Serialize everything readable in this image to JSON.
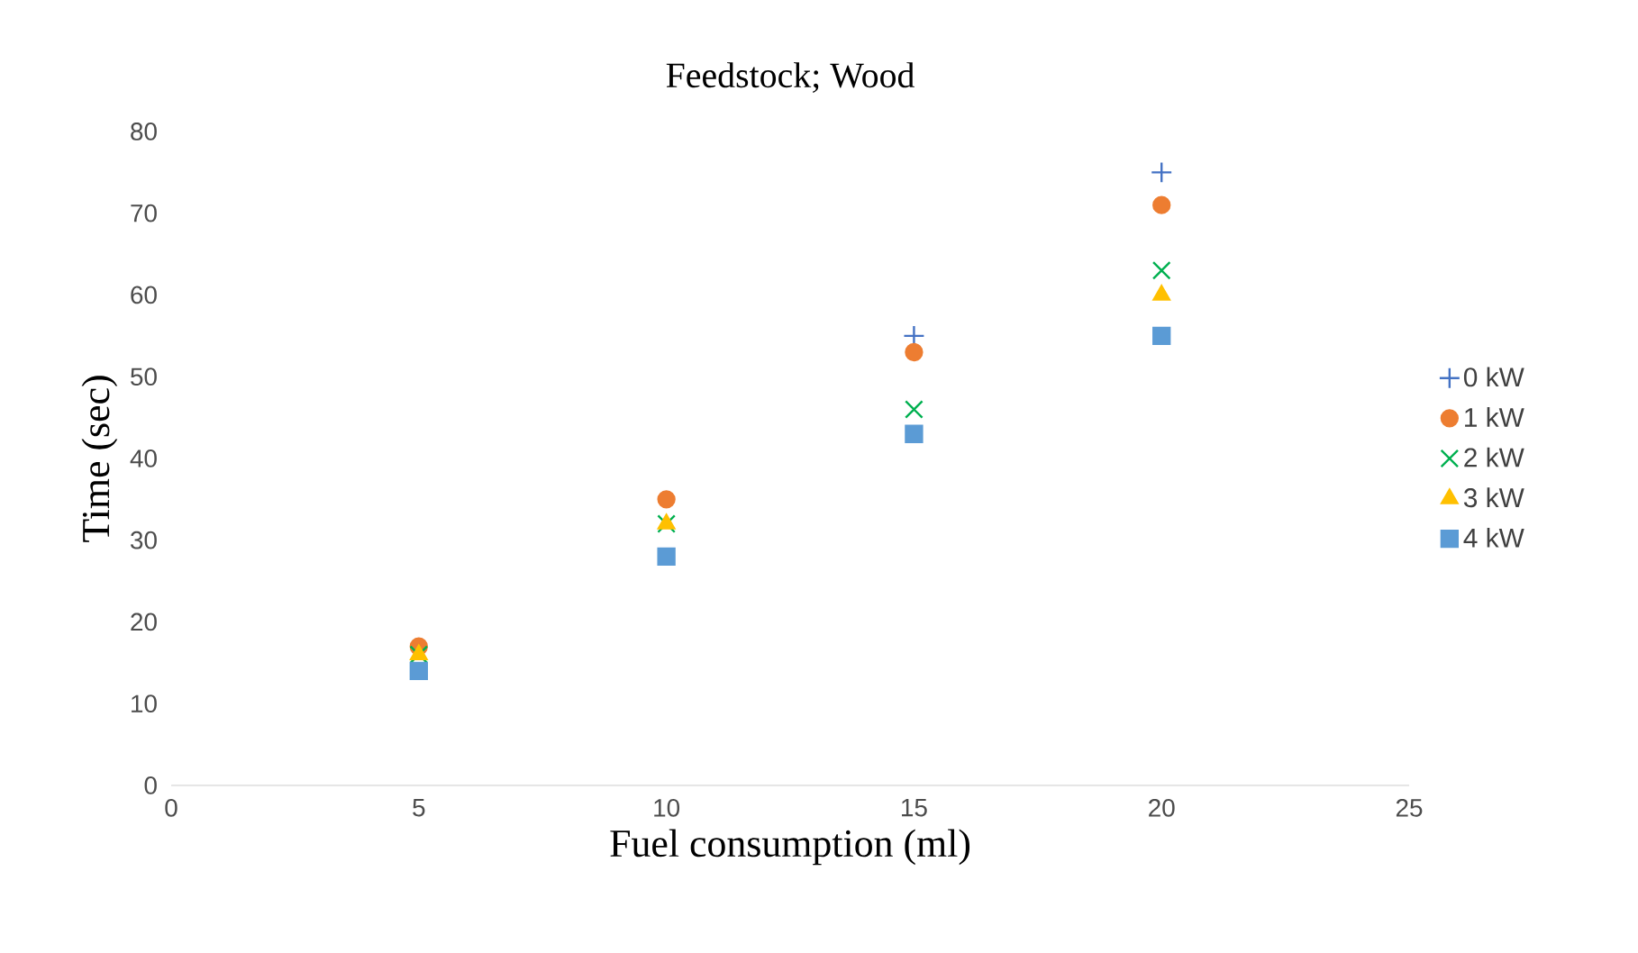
{
  "chart_data": {
    "type": "scatter",
    "title": "Feedstock; Wood",
    "xlabel": "Fuel consumption (ml)",
    "ylabel": "Time (sec)",
    "x": [
      5,
      10,
      15,
      20
    ],
    "series": [
      {
        "name": "0 kW",
        "color": "#4472c4",
        "marker": "plus",
        "values": [
          null,
          null,
          55,
          75
        ]
      },
      {
        "name": "1 kW",
        "color": "#ed7d31",
        "marker": "circle",
        "values": [
          17,
          35,
          53,
          71
        ]
      },
      {
        "name": "2 kW",
        "color": "#00b050",
        "marker": "cross",
        "values": [
          16,
          32,
          46,
          63
        ]
      },
      {
        "name": "3 kW",
        "color": "#ffc000",
        "marker": "triangle",
        "values": [
          16,
          32,
          null,
          60
        ]
      },
      {
        "name": "4 kW",
        "color": "#5b9bd5",
        "marker": "square",
        "values": [
          14,
          28,
          43,
          55
        ]
      }
    ],
    "xlim": [
      0,
      25
    ],
    "xticks": [
      0,
      5,
      10,
      15,
      20,
      25
    ],
    "ylim": [
      0,
      80
    ],
    "yticks": [
      0,
      10,
      20,
      30,
      40,
      50,
      60,
      70,
      80
    ],
    "legend": "right"
  }
}
